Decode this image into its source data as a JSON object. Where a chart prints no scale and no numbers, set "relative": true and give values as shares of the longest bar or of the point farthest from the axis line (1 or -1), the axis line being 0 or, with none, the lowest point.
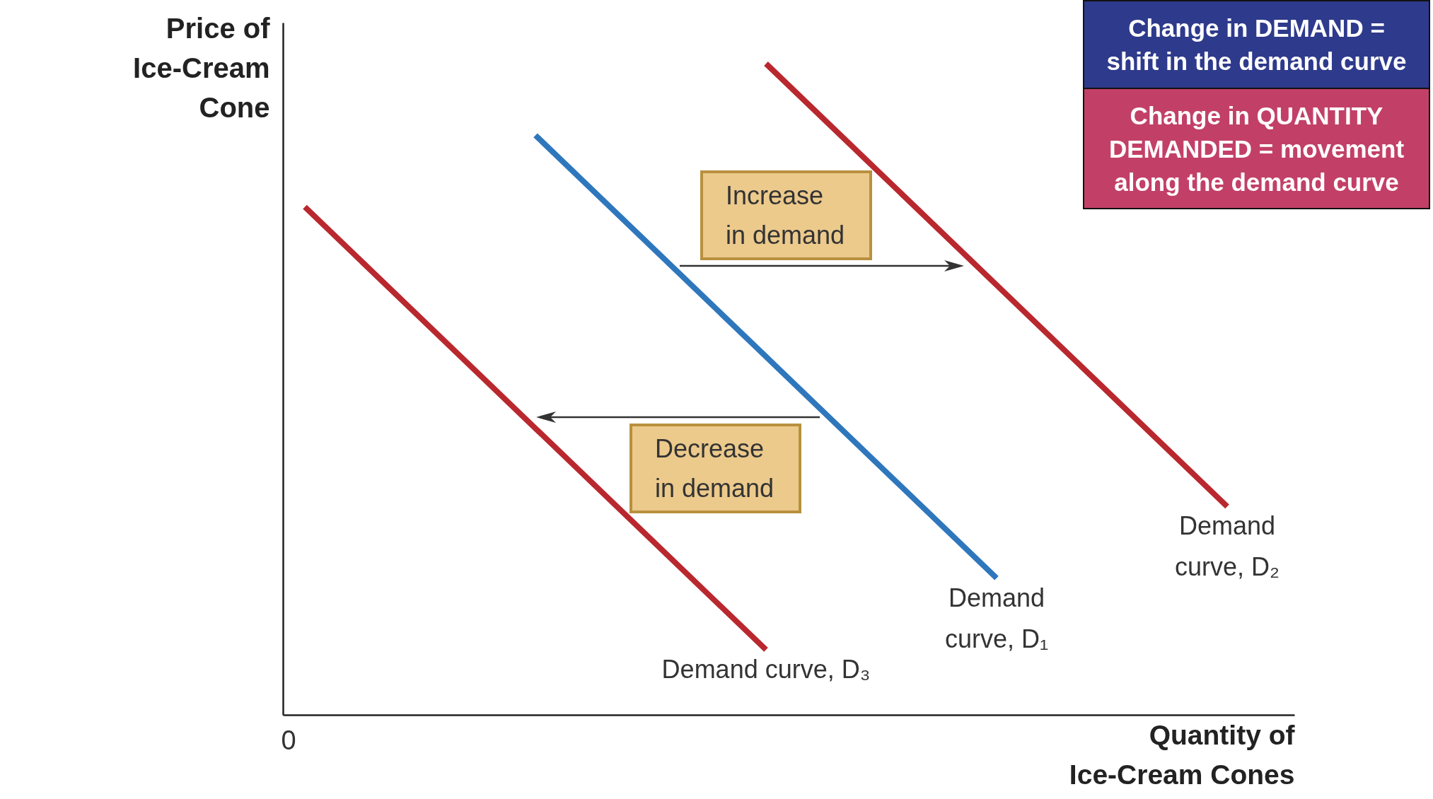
{
  "chart_data": {
    "type": "line",
    "relative": true,
    "xlabel": "Quantity of Ice-Cream Cones",
    "ylabel": "Price of Ice-Cream Cone",
    "categories": [
      null,
      null,
      null,
      null,
      null
    ],
    "series": [
      {
        "name": "Demand curve, D₁",
        "color": "#2f77bd",
        "values": [
          null,
          0.89,
          0.55,
          0.21,
          null
        ]
      },
      {
        "name": "Demand curve, D₂",
        "color": "#b9282e",
        "values": [
          null,
          null,
          1.0,
          0.66,
          0.32
        ]
      },
      {
        "name": "Demand curve, D₃",
        "color": "#b9282e",
        "values": [
          0.78,
          0.44,
          0.1,
          null,
          null
        ]
      }
    ],
    "annotations": [
      "Change in DEMAND = shift in the demand curve",
      "Change in QUANTITY DEMANDED = movement along the demand curve",
      "Increase in demand",
      "Decrease in demand",
      "0"
    ]
  }
}
